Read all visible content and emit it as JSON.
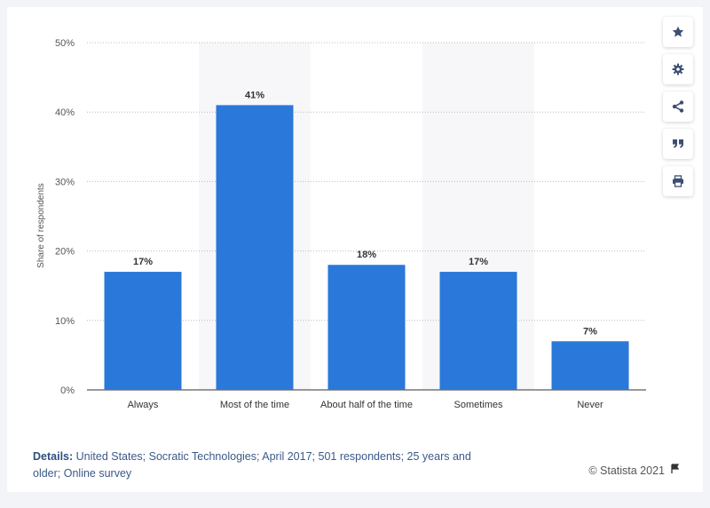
{
  "chart_data": {
    "type": "bar",
    "categories": [
      "Always",
      "Most of the time",
      "About half of the time",
      "Sometimes",
      "Never"
    ],
    "values": [
      17,
      41,
      18,
      17,
      7
    ],
    "data_labels": [
      "17%",
      "41%",
      "18%",
      "17%",
      "7%"
    ],
    "ylabel": "Share of respondents",
    "yticks": [
      "0%",
      "10%",
      "20%",
      "30%",
      "40%",
      "50%"
    ],
    "ylim": [
      0,
      50
    ],
    "grid": true,
    "bar_color": "#2a78d9"
  },
  "toolbar": {
    "buttons": [
      {
        "name": "favorite-button",
        "icon": "star-icon"
      },
      {
        "name": "settings-button",
        "icon": "gear-icon"
      },
      {
        "name": "share-button",
        "icon": "share-icon"
      },
      {
        "name": "cite-button",
        "icon": "quote-icon"
      },
      {
        "name": "print-button",
        "icon": "print-icon"
      }
    ]
  },
  "footer": {
    "details_label": "Details:",
    "details_text": "United States; Socratic Technologies; April 2017; 501 respondents; 25 years and older; Online survey",
    "copyright": "© Statista 2021"
  },
  "colors": {
    "accent": "#2a78d9",
    "icon": "#3c4e72",
    "band": "#f7f7f9"
  }
}
